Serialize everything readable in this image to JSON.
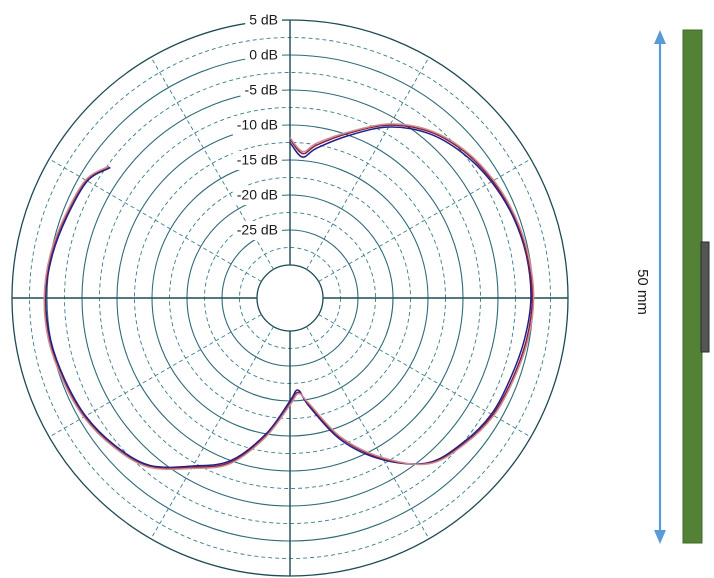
{
  "chart_data": {
    "type": "polar-line",
    "radial_unit": "dB",
    "r_range": [
      -30,
      5
    ],
    "radial_ticks": [
      {
        "value": 5,
        "label": "5 dB"
      },
      {
        "value": 0,
        "label": "0 dB"
      },
      {
        "value": -5,
        "label": "-5 dB"
      },
      {
        "value": -10,
        "label": "-10 dB"
      },
      {
        "value": -15,
        "label": "-15 dB"
      },
      {
        "value": -20,
        "label": "-20 dB"
      },
      {
        "value": -25,
        "label": "-25 dB"
      }
    ],
    "angle_grid_step_deg": 30,
    "angle_zero": "top",
    "angle_direction": "clockwise",
    "series": [
      {
        "color": "#1f1f8c",
        "points": [
          [
            0,
            -12.5
          ],
          [
            5,
            -14.5
          ],
          [
            10,
            -13.0
          ],
          [
            20,
            -10.0
          ],
          [
            30,
            -6.5
          ],
          [
            40,
            -4.0
          ],
          [
            50,
            -2.5
          ],
          [
            60,
            -1.5
          ],
          [
            70,
            -0.8
          ],
          [
            80,
            -0.4
          ],
          [
            90,
            -0.3
          ],
          [
            100,
            -0.7
          ],
          [
            110,
            -1.2
          ],
          [
            120,
            -1.5
          ],
          [
            130,
            -2.5
          ],
          [
            140,
            -4.0
          ],
          [
            150,
            -8.0
          ],
          [
            160,
            -13.0
          ],
          [
            170,
            -19.0
          ],
          [
            175,
            -21.5
          ],
          [
            180,
            -20.0
          ],
          [
            190,
            -15.0
          ],
          [
            200,
            -10.0
          ],
          [
            210,
            -7.0
          ],
          [
            220,
            -3.5
          ],
          [
            230,
            -2.0
          ],
          [
            240,
            -1.0
          ],
          [
            250,
            -0.5
          ],
          [
            260,
            0.0
          ],
          [
            270,
            0.2
          ],
          [
            280,
            -0.2
          ],
          [
            290,
            -0.8
          ],
          [
            300,
            -1.3
          ],
          [
            306,
            -3.0
          ]
        ]
      },
      {
        "color": "#8b1a3c",
        "points": [
          [
            0,
            -12.0
          ],
          [
            5,
            -14.0
          ],
          [
            10,
            -12.5
          ],
          [
            20,
            -9.6
          ],
          [
            30,
            -6.2
          ],
          [
            40,
            -3.7
          ],
          [
            50,
            -2.2
          ],
          [
            60,
            -1.3
          ],
          [
            70,
            -0.6
          ],
          [
            80,
            -0.3
          ],
          [
            90,
            -0.1
          ],
          [
            100,
            -0.4
          ],
          [
            110,
            -0.9
          ],
          [
            120,
            -1.3
          ],
          [
            130,
            -2.3
          ],
          [
            140,
            -3.9
          ],
          [
            150,
            -8.2
          ],
          [
            160,
            -13.4
          ],
          [
            170,
            -19.3
          ],
          [
            175,
            -21.2
          ],
          [
            180,
            -19.6
          ],
          [
            190,
            -14.7
          ],
          [
            200,
            -9.7
          ],
          [
            210,
            -6.8
          ],
          [
            220,
            -3.3
          ],
          [
            230,
            -1.8
          ],
          [
            240,
            -0.8
          ],
          [
            250,
            -0.3
          ],
          [
            260,
            0.2
          ],
          [
            270,
            0.3
          ],
          [
            280,
            0.0
          ],
          [
            290,
            -0.6
          ],
          [
            300,
            -1.1
          ],
          [
            306,
            -2.8
          ]
        ]
      },
      {
        "color": "#c89096",
        "points": [
          [
            0,
            -11.8
          ],
          [
            5,
            -13.7
          ],
          [
            10,
            -12.2
          ],
          [
            20,
            -9.4
          ],
          [
            30,
            -6.0
          ],
          [
            40,
            -3.5
          ],
          [
            50,
            -2.0
          ],
          [
            60,
            -1.1
          ],
          [
            70,
            -0.5
          ],
          [
            80,
            -0.1
          ],
          [
            90,
            0.1
          ],
          [
            100,
            -0.2
          ],
          [
            110,
            -0.7
          ],
          [
            120,
            -1.1
          ],
          [
            130,
            -2.2
          ],
          [
            140,
            -3.8
          ],
          [
            150,
            -8.4
          ],
          [
            160,
            -13.6
          ],
          [
            170,
            -19.5
          ],
          [
            175,
            -21.0
          ],
          [
            180,
            -19.4
          ],
          [
            190,
            -14.5
          ],
          [
            200,
            -9.5
          ],
          [
            210,
            -6.6
          ],
          [
            220,
            -3.2
          ],
          [
            230,
            -1.7
          ],
          [
            240,
            -0.7
          ],
          [
            250,
            -0.2
          ],
          [
            260,
            0.3
          ],
          [
            270,
            0.4
          ],
          [
            280,
            0.1
          ],
          [
            290,
            -0.5
          ],
          [
            300,
            -1.0
          ],
          [
            306,
            -2.7
          ]
        ]
      }
    ]
  },
  "antenna": {
    "dimension_label": "50 mm",
    "arrow_color": "#5b9bd5",
    "board_color": "#538135"
  }
}
